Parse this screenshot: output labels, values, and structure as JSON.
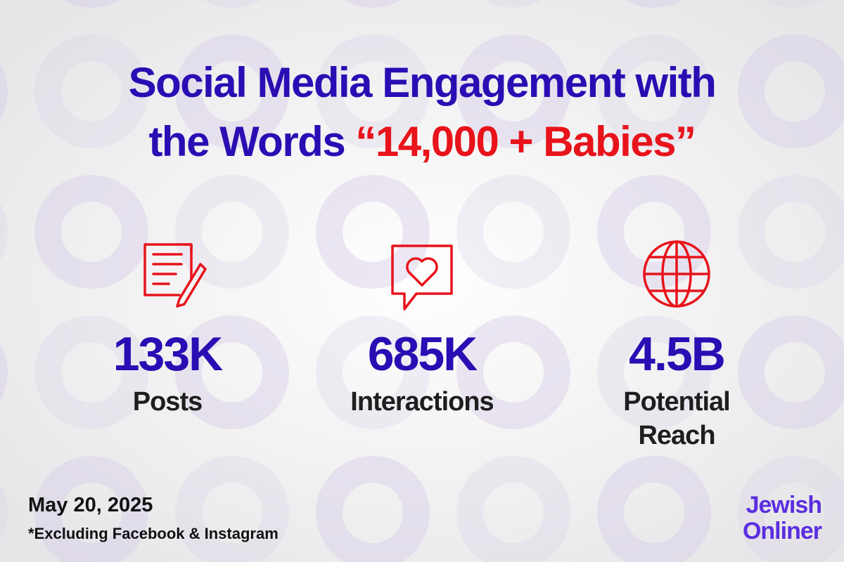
{
  "header": {
    "title_line1": "Social Media Engagement with",
    "title_line2": "the Words",
    "title_highlight": "“14,000 + Babies”"
  },
  "stats": [
    {
      "value": "133K",
      "label_lines": [
        "Posts"
      ]
    },
    {
      "value": "685K",
      "label_lines": [
        "Interactions"
      ]
    },
    {
      "value": "4.5B",
      "label_lines": [
        "Potential",
        "Reach"
      ]
    }
  ],
  "footer": {
    "date": "May 20, 2025",
    "note": "*Excluding Facebook & Instagram"
  },
  "logo": {
    "line1": "Jewish",
    "line2": "Onliner"
  }
}
